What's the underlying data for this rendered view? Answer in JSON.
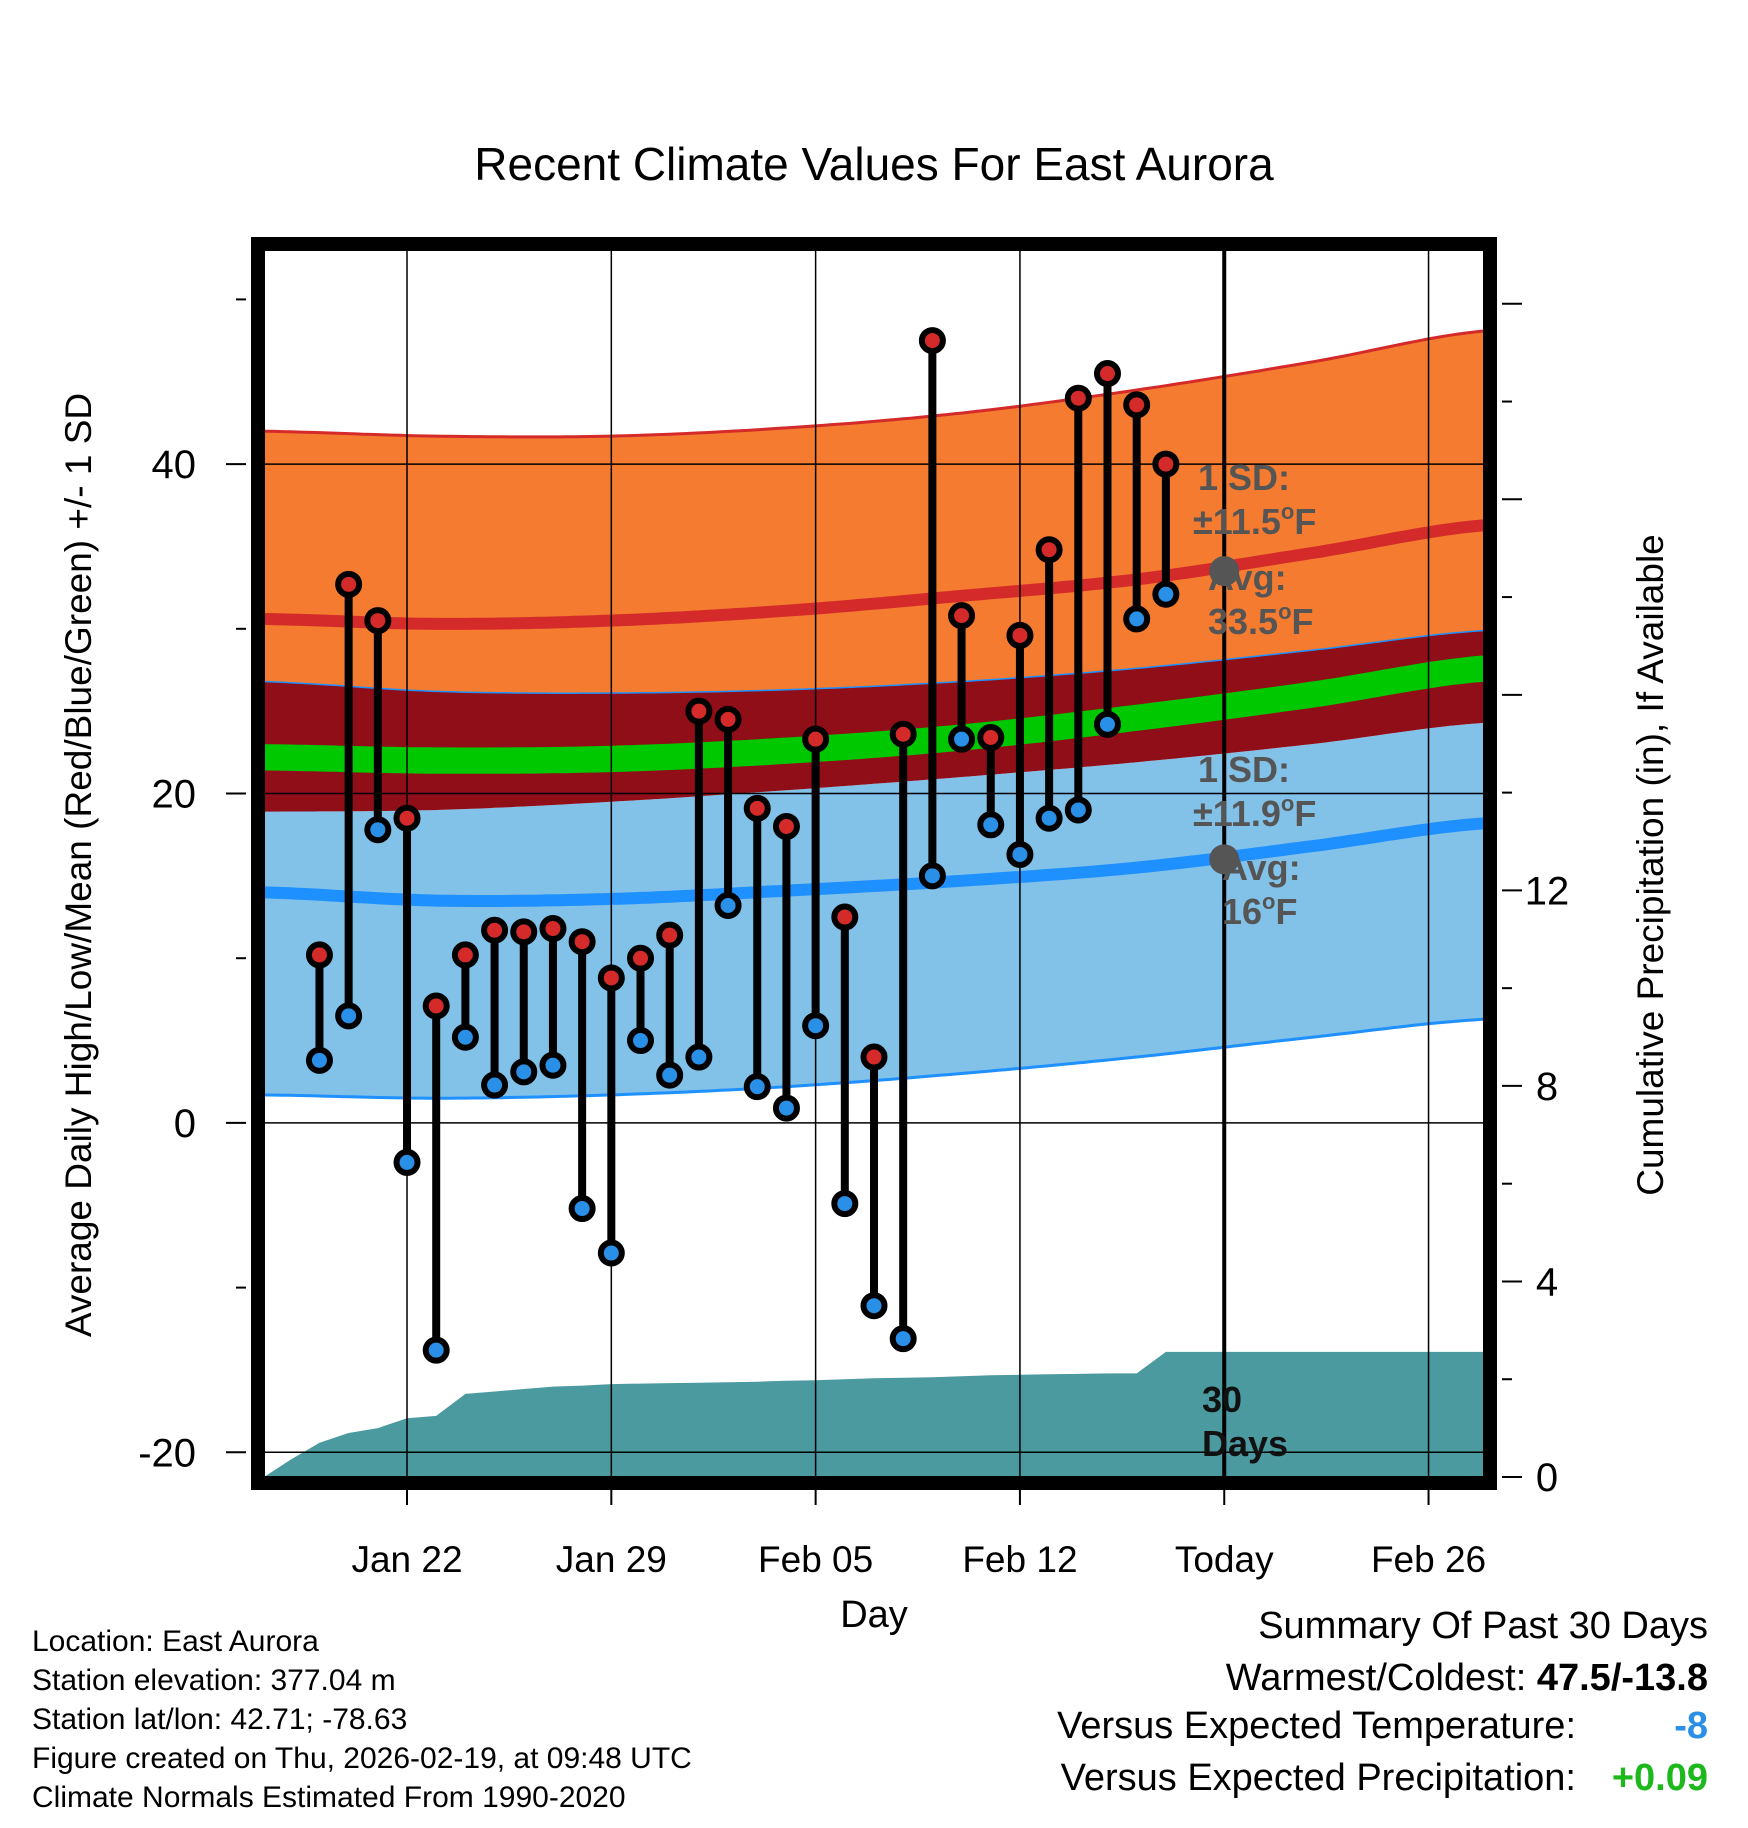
{
  "chart_data": {
    "type": "line",
    "title": "Recent Climate Values For East Aurora",
    "xlabel": "Day",
    "ylabel_left": "Average Daily High/Low/Mean (Red/Blue/Green) +/- 1 SD",
    "ylabel_right": "Cumulative Precipitation (in), If Available",
    "x_range_days": [
      -1.9,
      39.9
    ],
    "ylim_left": [
      -21.5,
      53
    ],
    "ylim_right": [
      0,
      25.1
    ],
    "x_ticks": [
      {
        "day": 3,
        "label": "Jan 22"
      },
      {
        "day": 10,
        "label": "Jan 29"
      },
      {
        "day": 17,
        "label": "Feb 05"
      },
      {
        "day": 24,
        "label": "Feb 12"
      },
      {
        "day": 31,
        "label": "Today"
      },
      {
        "day": 38,
        "label": "Feb 26"
      }
    ],
    "y_ticks_left": [
      "-20",
      "0",
      "20",
      "40"
    ],
    "y_ticks_right": [
      "0",
      "4",
      "8",
      "12"
    ],
    "grid": true,
    "today_day": 31,
    "normals": {
      "days": [
        -2,
        4,
        10,
        16,
        22,
        28,
        34,
        40
      ],
      "high_mean": [
        30.6,
        30.3,
        30.5,
        31.1,
        32.0,
        33.0,
        34.6,
        36.3
      ],
      "high_upper": [
        42.0,
        41.7,
        41.7,
        42.2,
        43.1,
        44.5,
        46.2,
        48.1
      ],
      "high_lower": [
        26.8,
        26.2,
        26.1,
        26.3,
        26.8,
        27.6,
        28.7,
        29.9
      ],
      "mean": [
        22.2,
        22.0,
        22.1,
        22.6,
        23.4,
        24.6,
        26.0,
        27.6
      ],
      "mean_upper": [
        23.0,
        22.8,
        22.9,
        23.4,
        24.2,
        25.4,
        26.8,
        28.4
      ],
      "mean_lower": [
        21.4,
        21.2,
        21.3,
        21.8,
        22.6,
        23.8,
        25.2,
        26.8
      ],
      "low_upper": [
        18.9,
        19.0,
        19.5,
        20.2,
        21.0,
        21.9,
        23.0,
        24.3
      ],
      "low_mean": [
        14.0,
        13.5,
        13.6,
        14.1,
        14.7,
        15.5,
        16.8,
        18.2
      ],
      "low_lower": [
        1.7,
        1.5,
        1.7,
        2.2,
        3.0,
        4.0,
        5.2,
        6.3
      ]
    },
    "series": [
      {
        "name": "Daily High",
        "color": "#d42a2a",
        "days": [
          0,
          1,
          2,
          3,
          4,
          5,
          6,
          7,
          8,
          9,
          10,
          11,
          12,
          13,
          14,
          15,
          16,
          17,
          18,
          19,
          20,
          21,
          22,
          23,
          24,
          25,
          26,
          27,
          28,
          29
        ],
        "values": [
          10.2,
          32.7,
          30.5,
          18.5,
          7.1,
          10.2,
          11.7,
          11.6,
          11.8,
          11.0,
          8.8,
          10.0,
          11.4,
          25.0,
          24.5,
          19.1,
          18.0,
          23.3,
          12.5,
          4.0,
          23.6,
          47.5,
          30.8,
          23.4,
          29.6,
          34.8,
          44.0,
          45.5,
          43.6,
          40.0
        ]
      },
      {
        "name": "Daily Low",
        "color": "#2a8fe6",
        "days": [
          0,
          1,
          2,
          3,
          4,
          5,
          6,
          7,
          8,
          9,
          10,
          11,
          12,
          13,
          14,
          15,
          16,
          17,
          18,
          19,
          20,
          21,
          22,
          23,
          24,
          25,
          26,
          27,
          28,
          29
        ],
        "values": [
          3.8,
          6.5,
          17.8,
          -2.4,
          -13.8,
          5.2,
          2.3,
          3.1,
          3.5,
          -5.2,
          -7.9,
          5.0,
          2.9,
          4.0,
          13.2,
          2.2,
          0.9,
          5.9,
          -4.9,
          -11.1,
          -13.1,
          15.0,
          23.3,
          18.1,
          16.3,
          18.5,
          19.0,
          24.2,
          30.6,
          32.1
        ]
      },
      {
        "name": "Cumulative Precipitation (in)",
        "color": "#4a9aa0",
        "days": [
          -1.9,
          -1.0,
          0,
          1,
          2,
          3,
          4,
          5,
          6,
          7,
          8,
          9,
          10,
          11,
          12,
          13,
          14,
          15,
          16,
          17,
          18,
          19,
          20,
          21,
          22,
          23,
          24,
          25,
          26,
          27,
          28,
          29,
          39.9
        ],
        "values": [
          0,
          0.35,
          0.7,
          0.9,
          1.0,
          1.2,
          1.25,
          1.7,
          1.75,
          1.8,
          1.85,
          1.87,
          1.9,
          1.91,
          1.92,
          1.93,
          1.94,
          1.95,
          1.97,
          1.98,
          2.0,
          2.02,
          2.03,
          2.04,
          2.06,
          2.08,
          2.09,
          2.1,
          2.11,
          2.12,
          2.12,
          2.56,
          2.56
        ]
      }
    ],
    "annotations": {
      "high_sd": {
        "line1": "1 SD:",
        "line2_pm": "±",
        "line2_value": "11.5",
        "unit_deg": "o",
        "unit_f": "F"
      },
      "high_avg": {
        "label": "Avg:",
        "value": "33.5",
        "unit_deg": "o",
        "unit_f": "F",
        "avg_value": 33.5
      },
      "low_sd": {
        "line1": "1 SD:",
        "line2_pm": "±",
        "line2_value": "11.9",
        "unit_deg": "o",
        "unit_f": "F"
      },
      "low_avg": {
        "label": "Avg:",
        "value": "16",
        "unit_deg": "o",
        "unit_f": "F",
        "avg_value": 16
      },
      "precip_days": {
        "line1": "30",
        "line2": "Days"
      }
    },
    "colors": {
      "high_band": "#f47b2f",
      "high_edge": "#d42a2a",
      "mean_band": "#900e17",
      "mean_line": "#00c800",
      "low_band": "#82c1e8",
      "low_line": "#1e90ff",
      "precip": "#4a9aa0",
      "annotation": "#555555"
    }
  },
  "info": {
    "location": "Location: East Aurora",
    "elevation": "Station elevation: 377.04 m",
    "latlon": "Station lat/lon: 42.71; -78.63",
    "created": "Figure created on Thu, 2026-02-19, at 09:48 UTC",
    "normals": "Climate Normals Estimated From 1990-2020"
  },
  "summary": {
    "title": "Summary Of Past 30 Days",
    "warmest_label": "Warmest/Coldest: ",
    "warmest_value": "47.5/-13.8",
    "temp_label": "Versus Expected Temperature:",
    "temp_value": "-8",
    "temp_color": "#2a8fe6",
    "precip_label": "Versus Expected Precipitation:",
    "precip_value": "+0.09",
    "precip_color": "#1cb81c"
  }
}
